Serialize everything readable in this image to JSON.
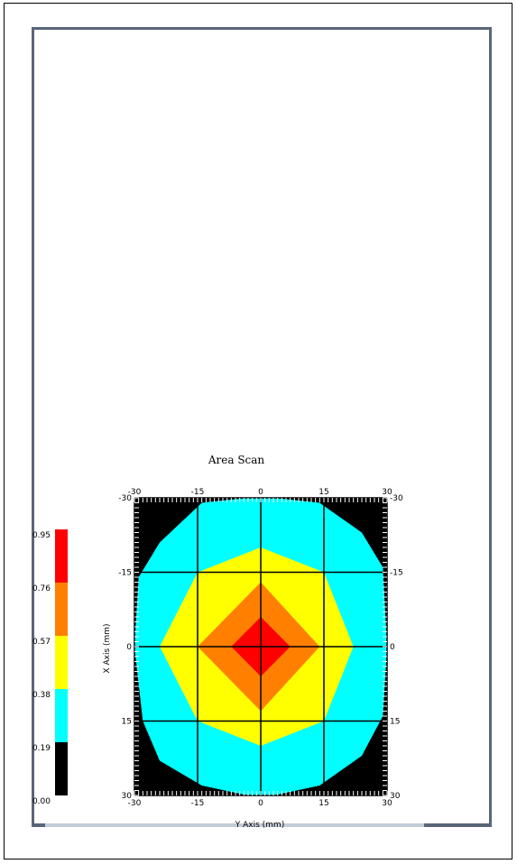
{
  "chart_data": {
    "type": "heatmap",
    "title": "Area Scan",
    "xlabel": "Y Axis (mm)",
    "ylabel": "X Axis (mm)",
    "xlim": [
      -30,
      30
    ],
    "ylim": [
      -30,
      30
    ],
    "x_ticks": [
      "-30",
      "-15",
      "0",
      "15",
      "30"
    ],
    "y_ticks": [
      "-30",
      "-15",
      "0",
      "15",
      "30"
    ],
    "grid": true,
    "legend_position": "left",
    "color_scale": {
      "labels": [
        "0.95",
        "0.76",
        "0.57",
        "0.38",
        "0.19",
        "0.00"
      ],
      "bands": [
        {
          "min": 0.76,
          "max": 0.95,
          "color": "#ff0000"
        },
        {
          "min": 0.57,
          "max": 0.76,
          "color": "#ff8000"
        },
        {
          "min": 0.38,
          "max": 0.57,
          "color": "#ffff00"
        },
        {
          "min": 0.19,
          "max": 0.38,
          "color": "#00ffff"
        },
        {
          "min": 0.0,
          "max": 0.19,
          "color": "#000000"
        }
      ]
    },
    "contours": [
      {
        "level": "0.00-0.19",
        "color": "#000000",
        "points": [
          [
            -30,
            -30
          ],
          [
            30,
            -30
          ],
          [
            30,
            30
          ],
          [
            -30,
            30
          ]
        ]
      },
      {
        "level": "0.19-0.38",
        "color": "#00ffff",
        "points": [
          [
            -14,
            -29
          ],
          [
            -3,
            -30
          ],
          [
            3,
            -30
          ],
          [
            14,
            -29
          ],
          [
            24,
            -23
          ],
          [
            29,
            -16
          ],
          [
            30,
            0
          ],
          [
            29,
            14
          ],
          [
            24,
            22
          ],
          [
            14,
            28
          ],
          [
            3,
            30
          ],
          [
            -3,
            30
          ],
          [
            -14,
            28
          ],
          [
            -24,
            23
          ],
          [
            -28,
            15
          ],
          [
            -30,
            0
          ],
          [
            -29,
            -14
          ],
          [
            -24,
            -21
          ]
        ]
      },
      {
        "level": "0.38-0.57",
        "color": "#ffff00",
        "points": [
          [
            0,
            -20
          ],
          [
            15,
            -15
          ],
          [
            22,
            0
          ],
          [
            15,
            15
          ],
          [
            0,
            20
          ],
          [
            -15,
            15
          ],
          [
            -24,
            0
          ],
          [
            -15,
            -15
          ]
        ]
      },
      {
        "level": "0.57-0.76",
        "color": "#ff8000",
        "points": [
          [
            0,
            -13
          ],
          [
            14,
            0
          ],
          [
            0,
            13
          ],
          [
            -15,
            0
          ]
        ]
      },
      {
        "level": "0.76-0.95",
        "color": "#ff0000",
        "points": [
          [
            0,
            -6
          ],
          [
            7,
            0
          ],
          [
            0,
            6
          ],
          [
            -7,
            0
          ]
        ]
      }
    ]
  }
}
